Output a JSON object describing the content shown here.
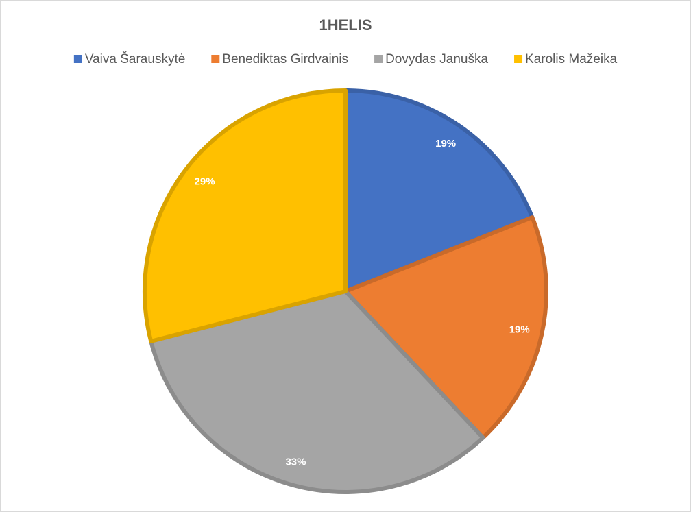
{
  "chart_data": {
    "type": "pie",
    "title": "1HELIS",
    "categories": [
      "Vaiva Šarauskytė",
      "Benediktas Girdvainis",
      "Dovydas Januška",
      "Karolis Mažeika"
    ],
    "values": [
      19,
      19,
      33,
      29
    ],
    "value_labels": [
      "19%",
      "19%",
      "33%",
      "29%"
    ],
    "colors": [
      "#4472c4",
      "#ed7d31",
      "#a5a5a5",
      "#ffc000"
    ],
    "legend": "top"
  }
}
